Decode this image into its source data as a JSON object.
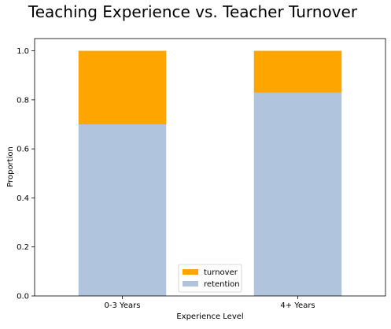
{
  "chart_data": {
    "type": "bar",
    "stacked": true,
    "title": "Teaching Experience vs. Teacher Turnover",
    "xlabel": "Experience Level",
    "ylabel": "Proportion",
    "categories": [
      "0-3 Years",
      "4+ Years"
    ],
    "series": [
      {
        "name": "retention",
        "values": [
          0.7,
          0.83
        ],
        "color": "#b0c4de"
      },
      {
        "name": "turnover",
        "values": [
          0.3,
          0.17
        ],
        "color": "#ffa500"
      }
    ],
    "ylim": [
      0,
      1.05
    ],
    "yticks": [
      "0.0",
      "0.2",
      "0.4",
      "0.6",
      "0.8",
      "1.0"
    ],
    "grid": false,
    "legend_position": "bottom-center"
  }
}
